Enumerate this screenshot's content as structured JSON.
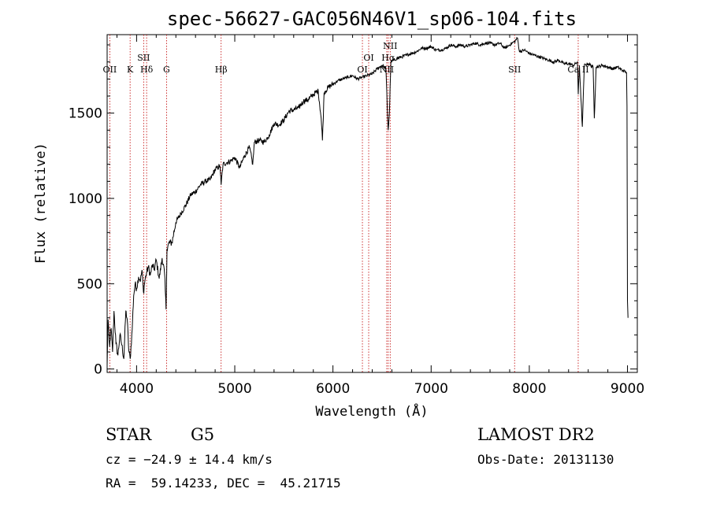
{
  "chart_data": {
    "type": "line",
    "title": "spec-56627-GAC056N46V1_sp06-104.fits",
    "xlabel": "Wavelength (Å)",
    "ylabel": "Flux (relative)",
    "xlim": [
      3700,
      9100
    ],
    "ylim": [
      -20,
      1960
    ],
    "x_ticks": [
      4000,
      5000,
      6000,
      7000,
      8000,
      9000
    ],
    "y_ticks": [
      0,
      500,
      1000,
      1500
    ],
    "grid": false,
    "series": [
      {
        "name": "flux",
        "points": [
          [
            3700,
            20
          ],
          [
            3710,
            290
          ],
          [
            3725,
            130
          ],
          [
            3740,
            240
          ],
          [
            3755,
            100
          ],
          [
            3770,
            340
          ],
          [
            3790,
            150
          ],
          [
            3810,
            80
          ],
          [
            3830,
            200
          ],
          [
            3850,
            140
          ],
          [
            3870,
            60
          ],
          [
            3890,
            340
          ],
          [
            3905,
            290
          ],
          [
            3920,
            110
          ],
          [
            3935,
            60
          ],
          [
            3955,
            230
          ],
          [
            3970,
            430
          ],
          [
            3985,
            500
          ],
          [
            4000,
            470
          ],
          [
            4020,
            540
          ],
          [
            4040,
            520
          ],
          [
            4055,
            580
          ],
          [
            4070,
            450
          ],
          [
            4085,
            520
          ],
          [
            4100,
            560
          ],
          [
            4120,
            600
          ],
          [
            4140,
            550
          ],
          [
            4160,
            610
          ],
          [
            4180,
            580
          ],
          [
            4200,
            640
          ],
          [
            4230,
            530
          ],
          [
            4260,
            650
          ],
          [
            4285,
            560
          ],
          [
            4300,
            350
          ],
          [
            4310,
            700
          ],
          [
            4330,
            740
          ],
          [
            4360,
            740
          ],
          [
            4400,
            860
          ],
          [
            4450,
            910
          ],
          [
            4500,
            960
          ],
          [
            4550,
            1020
          ],
          [
            4600,
            1040
          ],
          [
            4650,
            1080
          ],
          [
            4700,
            1100
          ],
          [
            4750,
            1110
          ],
          [
            4800,
            1170
          ],
          [
            4850,
            1190
          ],
          [
            4861,
            1080
          ],
          [
            4880,
            1200
          ],
          [
            4920,
            1210
          ],
          [
            4960,
            1220
          ],
          [
            5000,
            1240
          ],
          [
            5050,
            1180
          ],
          [
            5100,
            1250
          ],
          [
            5150,
            1300
          ],
          [
            5183,
            1200
          ],
          [
            5200,
            1330
          ],
          [
            5250,
            1340
          ],
          [
            5300,
            1330
          ],
          [
            5350,
            1370
          ],
          [
            5400,
            1440
          ],
          [
            5450,
            1430
          ],
          [
            5500,
            1460
          ],
          [
            5550,
            1510
          ],
          [
            5600,
            1520
          ],
          [
            5650,
            1530
          ],
          [
            5700,
            1570
          ],
          [
            5750,
            1580
          ],
          [
            5800,
            1610
          ],
          [
            5850,
            1630
          ],
          [
            5880,
            1470
          ],
          [
            5893,
            1340
          ],
          [
            5910,
            1620
          ],
          [
            5950,
            1650
          ],
          [
            6000,
            1670
          ],
          [
            6050,
            1690
          ],
          [
            6100,
            1700
          ],
          [
            6150,
            1710
          ],
          [
            6200,
            1720
          ],
          [
            6250,
            1700
          ],
          [
            6300,
            1710
          ],
          [
            6350,
            1720
          ],
          [
            6400,
            1730
          ],
          [
            6450,
            1760
          ],
          [
            6500,
            1780
          ],
          [
            6540,
            1760
          ],
          [
            6555,
            1500
          ],
          [
            6563,
            1400
          ],
          [
            6575,
            1500
          ],
          [
            6590,
            1800
          ],
          [
            6650,
            1820
          ],
          [
            6700,
            1830
          ],
          [
            6750,
            1840
          ],
          [
            6800,
            1850
          ],
          [
            6850,
            1860
          ],
          [
            6900,
            1880
          ],
          [
            6950,
            1880
          ],
          [
            7000,
            1890
          ],
          [
            7050,
            1870
          ],
          [
            7100,
            1870
          ],
          [
            7150,
            1880
          ],
          [
            7200,
            1900
          ],
          [
            7250,
            1890
          ],
          [
            7300,
            1900
          ],
          [
            7350,
            1890
          ],
          [
            7400,
            1900
          ],
          [
            7450,
            1910
          ],
          [
            7500,
            1900
          ],
          [
            7550,
            1910
          ],
          [
            7600,
            1910
          ],
          [
            7650,
            1900
          ],
          [
            7700,
            1910
          ],
          [
            7750,
            1880
          ],
          [
            7800,
            1900
          ],
          [
            7850,
            1920
          ],
          [
            7880,
            1940
          ],
          [
            7900,
            1860
          ],
          [
            7950,
            1870
          ],
          [
            8000,
            1850
          ],
          [
            8050,
            1840
          ],
          [
            8100,
            1830
          ],
          [
            8150,
            1820
          ],
          [
            8200,
            1810
          ],
          [
            8250,
            1800
          ],
          [
            8300,
            1810
          ],
          [
            8350,
            1790
          ],
          [
            8400,
            1790
          ],
          [
            8450,
            1780
          ],
          [
            8490,
            1800
          ],
          [
            8498,
            1610
          ],
          [
            8510,
            1780
          ],
          [
            8540,
            1420
          ],
          [
            8560,
            1780
          ],
          [
            8600,
            1790
          ],
          [
            8650,
            1770
          ],
          [
            8662,
            1470
          ],
          [
            8680,
            1770
          ],
          [
            8750,
            1780
          ],
          [
            8800,
            1770
          ],
          [
            8850,
            1760
          ],
          [
            8900,
            1770
          ],
          [
            8950,
            1750
          ],
          [
            8990,
            1740
          ],
          [
            8995,
            1540
          ],
          [
            9000,
            400
          ],
          [
            9005,
            300
          ]
        ]
      }
    ],
    "line_markers": [
      {
        "label": "OII",
        "x": 3727
      },
      {
        "label": "K",
        "x": 3934
      },
      {
        "label": "SII",
        "x": 4072
      },
      {
        "label": "Hδ",
        "x": 4102
      },
      {
        "label": "G",
        "x": 4305
      },
      {
        "label": "Hβ",
        "x": 4861
      },
      {
        "label": "OI",
        "x": 6300
      },
      {
        "label": "OI",
        "x": 6364
      },
      {
        "label": "NII",
        "x": 6548
      },
      {
        "label": "Hα",
        "x": 6563
      },
      {
        "label": "NII",
        "x": 6583
      },
      {
        "label": "SII",
        "x": 7850
      },
      {
        "label": "Ca II",
        "x": 8498
      }
    ],
    "marker_color": "#c00000"
  },
  "info": {
    "class": "STAR",
    "subclass": "G5",
    "survey": "LAMOST DR2",
    "cz": "cz = −24.9 ± 14.4 km/s",
    "obs_date": "Obs-Date: 20131130",
    "radec": "RA =  59.14233, DEC =  45.21715"
  }
}
